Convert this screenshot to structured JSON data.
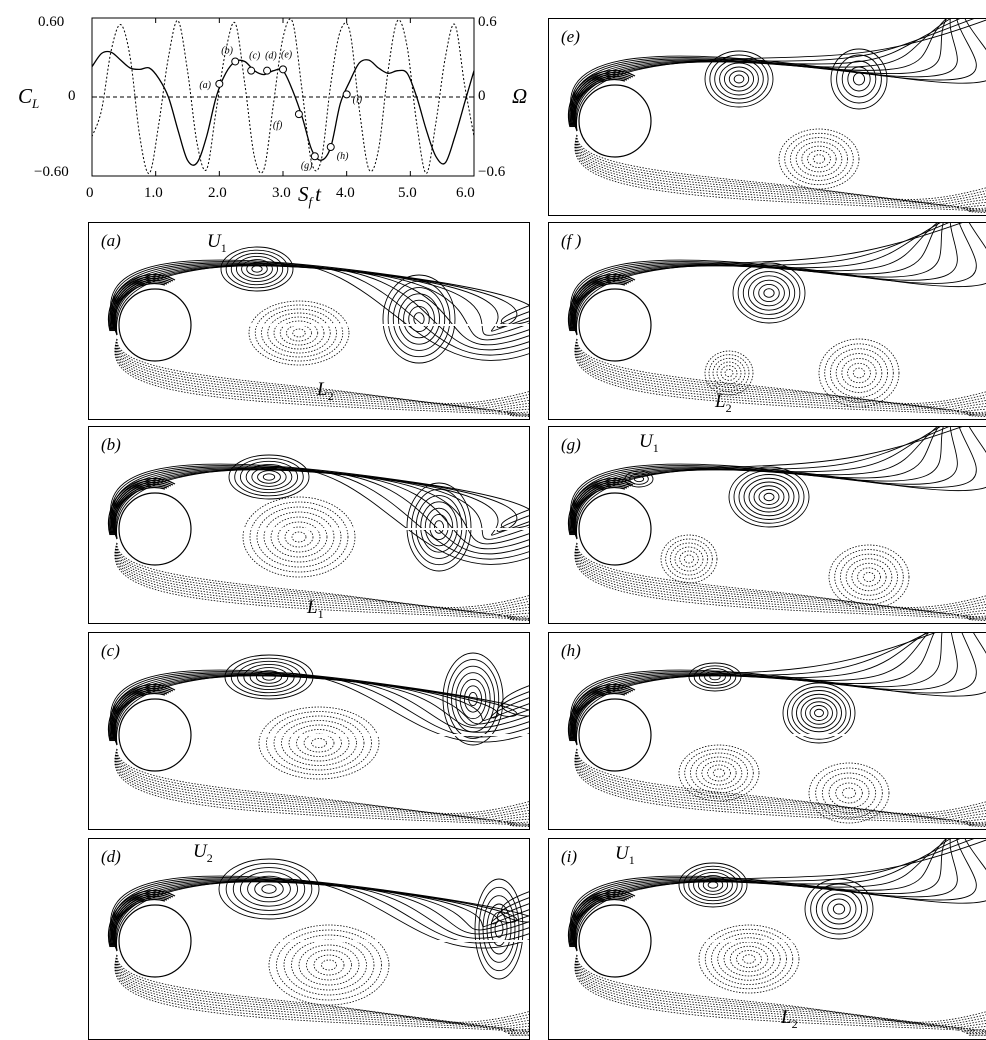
{
  "chart_data": {
    "type": "line",
    "x": [
      0.0,
      0.15,
      0.3,
      0.45,
      0.6,
      0.75,
      0.9,
      1.05,
      1.2,
      1.35,
      1.5,
      1.65,
      1.8,
      1.95,
      2.1,
      2.25,
      2.4,
      2.55,
      2.7,
      2.85,
      3.0,
      3.15,
      3.3,
      3.45,
      3.6,
      3.75,
      3.9,
      4.05,
      4.2,
      4.35,
      4.5,
      4.65,
      4.8,
      4.95,
      5.1,
      5.25,
      5.4,
      5.55,
      5.7,
      5.85,
      6.0
    ],
    "series": [
      {
        "style": "solid",
        "axis": "left",
        "values": [
          0.23,
          0.33,
          0.34,
          0.28,
          0.22,
          0.21,
          0.22,
          0.14,
          0.0,
          -0.25,
          -0.48,
          -0.5,
          -0.3,
          0.0,
          0.18,
          0.27,
          0.27,
          0.2,
          0.17,
          0.2,
          0.2,
          0.05,
          -0.15,
          -0.4,
          -0.48,
          -0.38,
          -0.05,
          0.12,
          0.26,
          0.28,
          0.22,
          0.18,
          0.2,
          0.18,
          0.0,
          -0.25,
          -0.45,
          -0.5,
          -0.3,
          -0.05,
          0.2
        ]
      },
      {
        "style": "dotted",
        "axis": "right",
        "values": [
          -0.3,
          -0.1,
          0.35,
          0.55,
          0.3,
          -0.3,
          -0.58,
          -0.2,
          0.3,
          0.58,
          0.2,
          -0.35,
          -0.55,
          -0.1,
          0.35,
          0.56,
          0.1,
          -0.45,
          -0.55,
          -0.05,
          0.45,
          0.57,
          0.05,
          -0.5,
          -0.48,
          0.1,
          0.5,
          0.5,
          -0.1,
          -0.55,
          -0.4,
          0.2,
          0.58,
          0.38,
          -0.2,
          -0.58,
          -0.2,
          0.3,
          0.55,
          0.1,
          -0.3
        ]
      }
    ],
    "points": [
      {
        "label": "(a)",
        "x": 2.0,
        "y": 0.1
      },
      {
        "label": "(b)",
        "x": 2.25,
        "y": 0.27
      },
      {
        "label": "(c)",
        "x": 2.5,
        "y": 0.2
      },
      {
        "label": "(d)",
        "x": 2.75,
        "y": 0.2
      },
      {
        "label": "(e)",
        "x": 3.0,
        "y": 0.21
      },
      {
        "label": "(f)",
        "x": 3.25,
        "y": -0.13
      },
      {
        "label": "(g)",
        "x": 3.5,
        "y": -0.45
      },
      {
        "label": "(h)",
        "x": 3.75,
        "y": -0.38
      },
      {
        "label": "(i)",
        "x": 4.0,
        "y": 0.02
      }
    ],
    "xlim": [
      0,
      6.0
    ],
    "ylim_left": [
      -0.6,
      0.6
    ],
    "ylim_right": [
      -0.6,
      0.6
    ],
    "x_ticks": [
      "0",
      "1.0",
      "2.0",
      "3.0",
      "4.0",
      "5.0",
      "6.0"
    ],
    "y_ticks_left": [
      "0.60",
      "0",
      "−0.60"
    ],
    "y_ticks_right": [
      "0.6",
      "0",
      "−0.6"
    ],
    "xlabel": "S",
    "xlabel_sub": "f",
    "xlabel_tail": "t",
    "ylabel_left": "C",
    "ylabel_left_sub": "L",
    "ylabel_right": "Ω"
  },
  "panels": [
    {
      "label": "(e)",
      "annotations": []
    },
    {
      "label": "(a)",
      "annotations": [
        {
          "text": "U",
          "sub": "1"
        },
        {
          "text": "L",
          "sub": "2"
        }
      ]
    },
    {
      "label": "(f )",
      "annotations": [
        {
          "text": "L",
          "sub": "2"
        }
      ]
    },
    {
      "label": "(b)",
      "annotations": [
        {
          "text": "L",
          "sub": "1"
        }
      ]
    },
    {
      "label": "(g)",
      "annotations": [
        {
          "text": "U",
          "sub": "1"
        }
      ]
    },
    {
      "label": "(c)",
      "annotations": []
    },
    {
      "label": "(h)",
      "annotations": []
    },
    {
      "label": "(d)",
      "annotations": [
        {
          "text": "U",
          "sub": "2"
        }
      ]
    },
    {
      "label": "(i)",
      "annotations": [
        {
          "text": "U",
          "sub": "1"
        },
        {
          "text": "L",
          "sub": "2"
        }
      ]
    }
  ]
}
